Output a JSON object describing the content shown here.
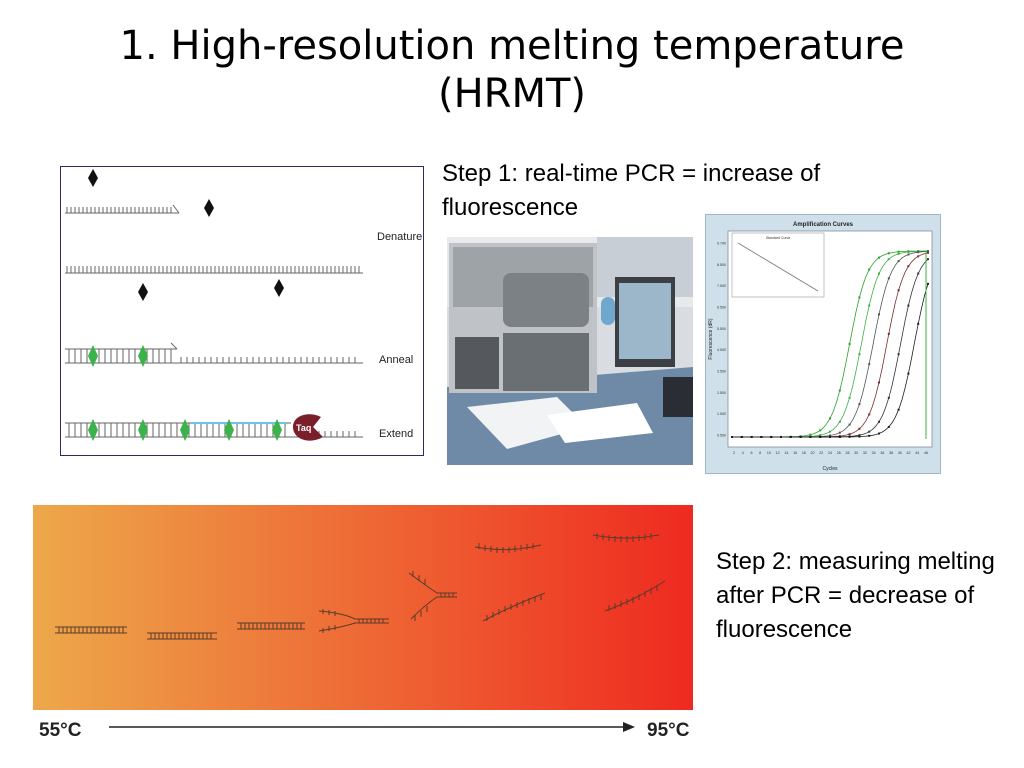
{
  "slide": {
    "title": "1. High-resolution melting temperature (HRMT)",
    "step1_caption": "Step 1: real-time PCR = increase of fluorescence",
    "step2_caption": "Step 2: measuring melting after PCR = decrease of fluorescence"
  },
  "pcr_diagram": {
    "steps": [
      "Denature",
      "Anneal",
      "Extend"
    ],
    "enzyme_label": "Taq"
  },
  "amplification_chart": {
    "title": "Amplification Curves",
    "inset_title": "Standard Curve",
    "xlabel": "Cycles",
    "ylabel": "Fluorescence (dR)",
    "y_ticks": [
      "9.700",
      "8.500",
      "7.500",
      "6.500",
      "5.500",
      "4.500",
      "3.500",
      "2.500",
      "1.500",
      "0.500"
    ],
    "x_ticks": [
      "2",
      "4",
      "6",
      "8",
      "10",
      "12",
      "14",
      "16",
      "18",
      "20",
      "22",
      "24",
      "26",
      "28",
      "30",
      "32",
      "34",
      "36",
      "38",
      "40",
      "42",
      "44",
      "46"
    ]
  },
  "melting": {
    "start_temp": "55°C",
    "end_temp": "95°C",
    "gradient_start": "#eda84a",
    "gradient_end": "#ee2a20"
  }
}
